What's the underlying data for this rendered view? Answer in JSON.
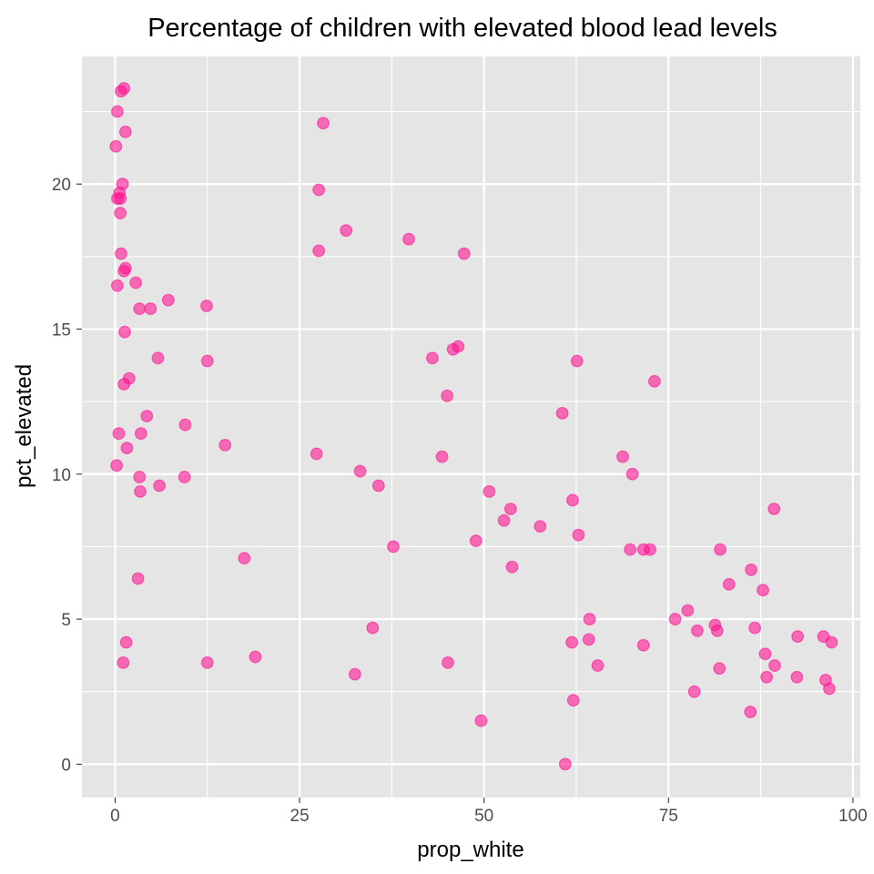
{
  "chart_data": {
    "type": "scatter",
    "title": "Percentage of children with elevated blood lead levels",
    "xlabel": "prop_white",
    "ylabel": "pct_elevated",
    "xlim": [
      -4.5,
      101
    ],
    "ylim": [
      -1.15,
      24.4
    ],
    "x_ticks": [
      0,
      25,
      50,
      75,
      100
    ],
    "x_tick_labels": [
      "0",
      "25",
      "50",
      "75",
      "100"
    ],
    "y_ticks": [
      0,
      5,
      10,
      15,
      20
    ],
    "y_tick_labels": [
      "0",
      "5",
      "10",
      "15",
      "20"
    ],
    "grid": true,
    "legend": "none",
    "colors": {
      "panel": "#e5e5e5",
      "grid": "#ffffff",
      "point_fill": "#ff1493",
      "point_stroke": "#ff1493"
    },
    "point_alpha": 0.6,
    "points": [
      {
        "x": 0.8,
        "y": 23.2
      },
      {
        "x": 1.2,
        "y": 23.3
      },
      {
        "x": 0.3,
        "y": 22.5
      },
      {
        "x": 1.4,
        "y": 21.8
      },
      {
        "x": 0.1,
        "y": 21.3
      },
      {
        "x": 1.0,
        "y": 20.0
      },
      {
        "x": 0.6,
        "y": 19.7
      },
      {
        "x": 0.3,
        "y": 19.5
      },
      {
        "x": 0.7,
        "y": 19.5
      },
      {
        "x": 0.7,
        "y": 19.0
      },
      {
        "x": 0.8,
        "y": 17.6
      },
      {
        "x": 1.4,
        "y": 17.1
      },
      {
        "x": 1.2,
        "y": 17.0
      },
      {
        "x": 2.8,
        "y": 16.6
      },
      {
        "x": 0.3,
        "y": 16.5
      },
      {
        "x": 7.2,
        "y": 16.0
      },
      {
        "x": 12.4,
        "y": 15.8
      },
      {
        "x": 4.8,
        "y": 15.7
      },
      {
        "x": 3.3,
        "y": 15.7
      },
      {
        "x": 1.3,
        "y": 14.9
      },
      {
        "x": 5.8,
        "y": 14.0
      },
      {
        "x": 12.5,
        "y": 13.9
      },
      {
        "x": 1.9,
        "y": 13.3
      },
      {
        "x": 1.2,
        "y": 13.1
      },
      {
        "x": 4.3,
        "y": 12.0
      },
      {
        "x": 9.5,
        "y": 11.7
      },
      {
        "x": 0.5,
        "y": 11.4
      },
      {
        "x": 3.5,
        "y": 11.4
      },
      {
        "x": 14.9,
        "y": 11.0
      },
      {
        "x": 1.6,
        "y": 10.9
      },
      {
        "x": 0.2,
        "y": 10.3
      },
      {
        "x": 3.3,
        "y": 9.9
      },
      {
        "x": 9.4,
        "y": 9.9
      },
      {
        "x": 6.0,
        "y": 9.6
      },
      {
        "x": 3.4,
        "y": 9.4
      },
      {
        "x": 17.5,
        "y": 7.1
      },
      {
        "x": 3.1,
        "y": 6.4
      },
      {
        "x": 1.5,
        "y": 4.2
      },
      {
        "x": 19.0,
        "y": 3.7
      },
      {
        "x": 12.5,
        "y": 3.5
      },
      {
        "x": 1.1,
        "y": 3.5
      },
      {
        "x": 28.2,
        "y": 22.1
      },
      {
        "x": 27.6,
        "y": 19.8
      },
      {
        "x": 31.3,
        "y": 18.4
      },
      {
        "x": 27.6,
        "y": 17.7
      },
      {
        "x": 39.8,
        "y": 18.1
      },
      {
        "x": 47.3,
        "y": 17.6
      },
      {
        "x": 46.5,
        "y": 14.4
      },
      {
        "x": 45.8,
        "y": 14.3
      },
      {
        "x": 43.0,
        "y": 14.0
      },
      {
        "x": 45.0,
        "y": 12.7
      },
      {
        "x": 27.3,
        "y": 10.7
      },
      {
        "x": 44.3,
        "y": 10.6
      },
      {
        "x": 33.2,
        "y": 10.1
      },
      {
        "x": 35.7,
        "y": 9.6
      },
      {
        "x": 37.7,
        "y": 7.5
      },
      {
        "x": 34.9,
        "y": 4.7
      },
      {
        "x": 45.1,
        "y": 3.5
      },
      {
        "x": 32.5,
        "y": 3.1
      },
      {
        "x": 62.6,
        "y": 13.9
      },
      {
        "x": 73.1,
        "y": 13.2
      },
      {
        "x": 60.6,
        "y": 12.1
      },
      {
        "x": 68.8,
        "y": 10.6
      },
      {
        "x": 70.1,
        "y": 10.0
      },
      {
        "x": 50.7,
        "y": 9.4
      },
      {
        "x": 62.0,
        "y": 9.1
      },
      {
        "x": 53.6,
        "y": 8.8
      },
      {
        "x": 52.7,
        "y": 8.4
      },
      {
        "x": 57.6,
        "y": 8.2
      },
      {
        "x": 62.8,
        "y": 7.9
      },
      {
        "x": 48.9,
        "y": 7.7
      },
      {
        "x": 69.8,
        "y": 7.4
      },
      {
        "x": 71.6,
        "y": 7.4
      },
      {
        "x": 72.5,
        "y": 7.4
      },
      {
        "x": 53.8,
        "y": 6.8
      },
      {
        "x": 64.3,
        "y": 5.0
      },
      {
        "x": 64.2,
        "y": 4.3
      },
      {
        "x": 61.9,
        "y": 4.2
      },
      {
        "x": 71.6,
        "y": 4.1
      },
      {
        "x": 65.4,
        "y": 3.4
      },
      {
        "x": 62.1,
        "y": 2.2
      },
      {
        "x": 49.6,
        "y": 1.5
      },
      {
        "x": 61.0,
        "y": 0.0
      },
      {
        "x": 89.3,
        "y": 8.8
      },
      {
        "x": 82.0,
        "y": 7.4
      },
      {
        "x": 86.2,
        "y": 6.7
      },
      {
        "x": 83.2,
        "y": 6.2
      },
      {
        "x": 87.8,
        "y": 6.0
      },
      {
        "x": 77.6,
        "y": 5.3
      },
      {
        "x": 75.9,
        "y": 5.0
      },
      {
        "x": 81.3,
        "y": 4.8
      },
      {
        "x": 86.7,
        "y": 4.7
      },
      {
        "x": 78.9,
        "y": 4.6
      },
      {
        "x": 81.6,
        "y": 4.6
      },
      {
        "x": 96.0,
        "y": 4.4
      },
      {
        "x": 92.5,
        "y": 4.4
      },
      {
        "x": 97.1,
        "y": 4.2
      },
      {
        "x": 88.1,
        "y": 3.8
      },
      {
        "x": 89.4,
        "y": 3.4
      },
      {
        "x": 81.9,
        "y": 3.3
      },
      {
        "x": 88.3,
        "y": 3.0
      },
      {
        "x": 92.4,
        "y": 3.0
      },
      {
        "x": 96.3,
        "y": 2.9
      },
      {
        "x": 96.8,
        "y": 2.6
      },
      {
        "x": 78.5,
        "y": 2.5
      },
      {
        "x": 86.1,
        "y": 1.8
      }
    ]
  }
}
